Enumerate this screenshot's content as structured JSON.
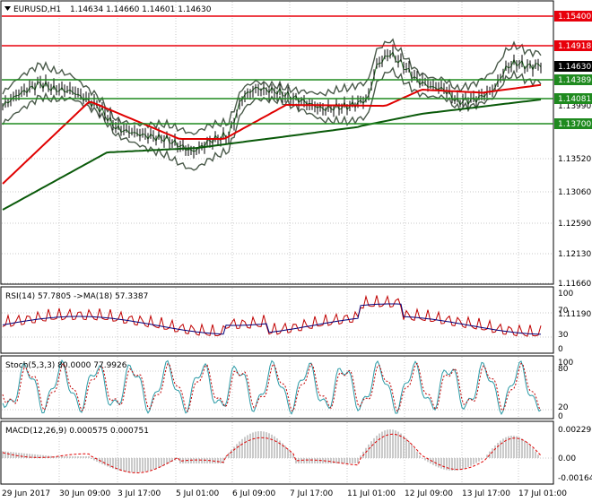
{
  "header": {
    "symbol": "EURUSD,H1",
    "ohlc": "1.14634 1.14660 1.14601 1.14630"
  },
  "main": {
    "price_labels": [
      "1.13520",
      "1.13060",
      "1.12590",
      "1.12130",
      "1.11660",
      "1.11190"
    ],
    "levels": [
      {
        "label": "1.15400",
        "color": "#e8000b",
        "kind": "resistance"
      },
      {
        "label": "1.14918",
        "color": "#e8000b",
        "kind": "resistance"
      },
      {
        "label": "1.14389",
        "color": "#1f8a1f",
        "kind": "support"
      },
      {
        "label": "1.14081",
        "color": "#1f8a1f",
        "kind": "support"
      },
      {
        "label": "1.13700",
        "color": "#1f8a1f",
        "kind": "support"
      }
    ],
    "current_price": "1.14630",
    "hidden_label": "1.13990"
  },
  "rsi": {
    "title": "RSI(14) 57.7805  ->MA(18) 57.3387",
    "labels": [
      "100",
      "70",
      "30",
      "0"
    ]
  },
  "stoch": {
    "title": "Stoch(5,3,3) 80.0000 77.9926",
    "labels": [
      "100",
      "80",
      "20",
      "0"
    ]
  },
  "macd": {
    "title": "MACD(12,26,9) 0.000575 0.000751",
    "labels": [
      "0.00229",
      "0.00",
      "-0.00164"
    ]
  },
  "time_axis": [
    "29 Jun 2017",
    "30 Jun 09:00",
    "3 Jul 17:00",
    "5 Jul 01:00",
    "6 Jul 09:00",
    "7 Jul 17:00",
    "11 Jul 01:00",
    "12 Jul 09:00",
    "13 Jul 17:00",
    "17 Jul 01:00"
  ],
  "colors": {
    "price_line": "#000000",
    "ma_red": "#e00000",
    "ma_green": "#0a5a0a",
    "rsi": "#c00000",
    "rsi_ma": "#00007a",
    "stoch_main": "#2a9aa6",
    "stoch_signal": "#c00000",
    "macd_hist": "#bdbdbd",
    "macd_signal": "#e00000",
    "label_red": "#e8000b",
    "label_green": "#1f8a1f"
  }
}
